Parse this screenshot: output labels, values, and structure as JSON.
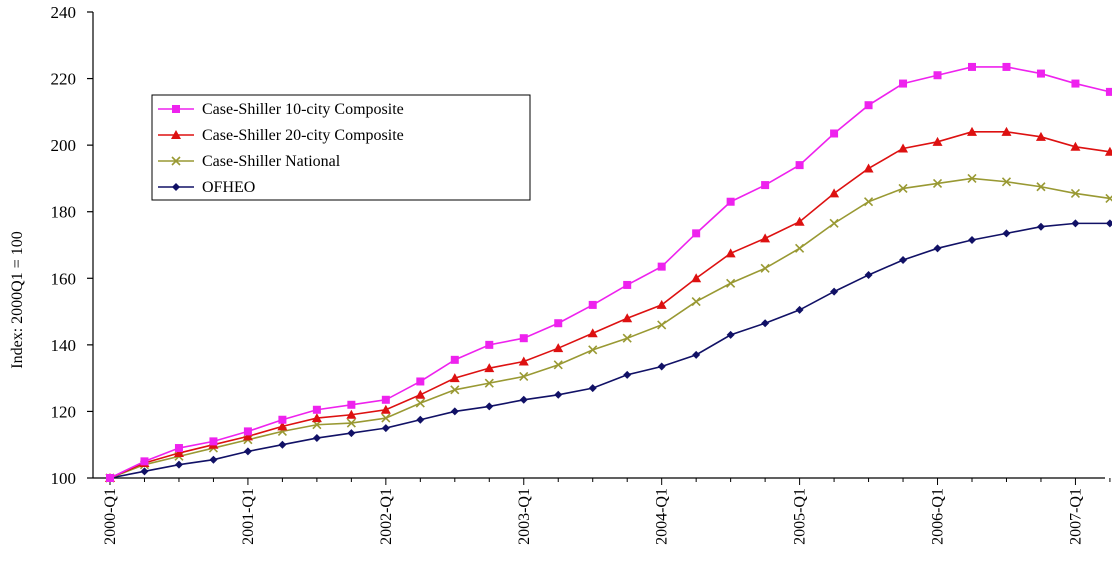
{
  "chart_data": {
    "type": "line",
    "title": "",
    "xlabel": "",
    "ylabel": "Index: 2000Q1 = 100",
    "ylim": [
      100,
      240
    ],
    "yticks": [
      100,
      120,
      140,
      160,
      180,
      200,
      220,
      240
    ],
    "xtick_labels": [
      "2000-Q1",
      "2001-Q1",
      "2002-Q1",
      "2003-Q1",
      "2004-Q1",
      "2005-Q1",
      "2006-Q1",
      "2007-Q1"
    ],
    "x_quarters": [
      "2000-Q1",
      "2000-Q2",
      "2000-Q3",
      "2000-Q4",
      "2001-Q1",
      "2001-Q2",
      "2001-Q3",
      "2001-Q4",
      "2002-Q1",
      "2002-Q2",
      "2002-Q3",
      "2002-Q4",
      "2003-Q1",
      "2003-Q2",
      "2003-Q3",
      "2003-Q4",
      "2004-Q1",
      "2004-Q2",
      "2004-Q3",
      "2004-Q4",
      "2005-Q1",
      "2005-Q2",
      "2005-Q3",
      "2005-Q4",
      "2006-Q1",
      "2006-Q2",
      "2006-Q3",
      "2006-Q4",
      "2007-Q1",
      "2007-Q2"
    ],
    "grid": false,
    "legend_position": "top-left",
    "series": [
      {
        "name": "Case-Shiller 10-city Composite",
        "color": "#ee22ee",
        "marker": "square",
        "values": [
          100,
          105,
          109,
          111,
          114,
          117.5,
          120.5,
          122,
          123.5,
          129,
          135.5,
          140,
          142,
          146.5,
          152,
          158,
          163.5,
          173.5,
          183,
          188,
          194,
          203.5,
          212,
          218.5,
          221,
          223.5,
          223.5,
          221.5,
          218.5,
          216
        ]
      },
      {
        "name": "Case-Shiller 20-city Composite",
        "color": "#dd1111",
        "marker": "triangle",
        "values": [
          100,
          104.5,
          107.5,
          110,
          112.5,
          115.5,
          118,
          119,
          120.5,
          125,
          130,
          133,
          135,
          139,
          143.5,
          148,
          152,
          160,
          167.5,
          172,
          177,
          185.5,
          193,
          199,
          201,
          204,
          204,
          202.5,
          199.5,
          198
        ]
      },
      {
        "name": "Case-Shiller National",
        "color": "#999933",
        "marker": "x",
        "values": [
          100,
          104,
          106.5,
          109,
          111.5,
          114,
          116,
          116.5,
          118,
          122.5,
          126.5,
          128.5,
          130.5,
          134,
          138.5,
          142,
          146,
          153,
          158.5,
          163,
          169,
          176.5,
          183,
          187,
          188.5,
          190,
          189,
          187.5,
          185.5,
          184
        ]
      },
      {
        "name": "OFHEO",
        "color": "#111166",
        "marker": "diamond",
        "values": [
          100,
          102,
          104,
          105.5,
          108,
          110,
          112,
          113.5,
          115,
          117.5,
          120,
          121.5,
          123.5,
          125,
          127,
          131,
          133.5,
          137,
          143,
          146.5,
          150.5,
          156,
          161,
          165.5,
          169,
          171.5,
          173.5,
          175.5,
          176.5,
          176.5
        ]
      }
    ]
  }
}
